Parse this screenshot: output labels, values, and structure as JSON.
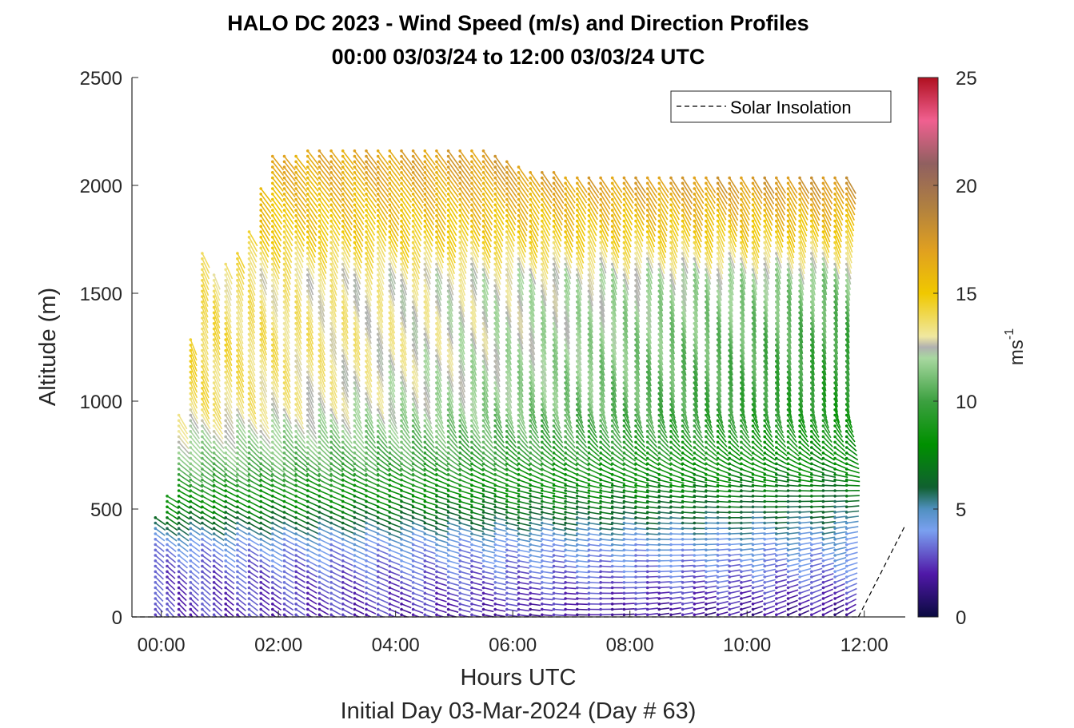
{
  "chart_data": {
    "type": "wind_profile_barbs",
    "title_line1": "HALO DC 2023 - Wind Speed (m/s) and Direction Profiles",
    "title_line2": "00:00 03/03/24 to 12:00 03/03/24  UTC",
    "xlabel": "Hours UTC",
    "xlabel2": "Initial Day 03-Mar-2024 (Day # 63)",
    "ylabel": "Altitude (m)",
    "x_ticks": [
      "00:00",
      "02:00",
      "04:00",
      "06:00",
      "08:00",
      "10:00",
      "12:00"
    ],
    "x_tick_hours": [
      0,
      2,
      4,
      6,
      8,
      10,
      12
    ],
    "xlim_hours": [
      -0.5,
      12.7
    ],
    "y_ticks": [
      "0",
      "500",
      "1000",
      "1500",
      "2000",
      "2500"
    ],
    "y_tick_values": [
      0,
      500,
      1000,
      1500,
      2000,
      2500
    ],
    "ylim": [
      0,
      2500
    ],
    "legend": {
      "entry": "Solar Insolation",
      "placement": "top-right",
      "style": "dashed-black"
    },
    "colorbar": {
      "label": "ms",
      "label_exponent": "-1",
      "ticks": [
        "0",
        "5",
        "10",
        "15",
        "20",
        "25"
      ],
      "tick_values": [
        0,
        5,
        10,
        15,
        20,
        25
      ],
      "range": [
        0,
        25
      ],
      "stops": [
        {
          "v": 0,
          "c": "#0a0a40"
        },
        {
          "v": 2,
          "c": "#5018a8"
        },
        {
          "v": 4,
          "c": "#7aa0f0"
        },
        {
          "v": 5,
          "c": "#5090c0"
        },
        {
          "v": 6,
          "c": "#106030"
        },
        {
          "v": 8,
          "c": "#009000"
        },
        {
          "v": 10,
          "c": "#3ca040"
        },
        {
          "v": 12,
          "c": "#a8d8a0"
        },
        {
          "v": 12.5,
          "c": "#b0b0b0"
        },
        {
          "v": 13,
          "c": "#f0e8a0"
        },
        {
          "v": 15,
          "c": "#f0c800"
        },
        {
          "v": 17,
          "c": "#e0a020"
        },
        {
          "v": 19,
          "c": "#b08040"
        },
        {
          "v": 21,
          "c": "#906060"
        },
        {
          "v": 23,
          "c": "#f06090"
        },
        {
          "v": 25,
          "c": "#b01020"
        }
      ]
    },
    "profile_hours": [
      -0.1,
      0.1,
      0.3,
      0.5,
      0.7,
      0.9,
      1.1,
      1.3,
      1.5,
      1.7,
      1.9,
      2.1,
      2.3,
      2.5,
      2.7,
      2.9,
      3.1,
      3.3,
      3.5,
      3.7,
      3.9,
      4.1,
      4.3,
      4.5,
      4.7,
      4.9,
      5.1,
      5.3,
      5.5,
      5.7,
      5.9,
      6.1,
      6.3,
      6.5,
      6.7,
      6.9,
      7.1,
      7.3,
      7.5,
      7.7,
      7.9,
      8.1,
      8.3,
      8.5,
      8.7,
      8.9,
      9.1,
      9.3,
      9.5,
      9.7,
      9.9,
      10.1,
      10.3,
      10.5,
      10.7,
      10.9,
      11.1,
      11.3,
      11.5,
      11.7
    ],
    "profile_top_altitude_m": [
      480,
      580,
      950,
      1300,
      1700,
      1600,
      1650,
      1700,
      1800,
      2000,
      2150,
      2150,
      2150,
      2180,
      2180,
      2180,
      2180,
      2180,
      2180,
      2180,
      2180,
      2180,
      2180,
      2180,
      2180,
      2180,
      2180,
      2180,
      2180,
      2150,
      2120,
      2100,
      2080,
      2060,
      2060,
      2040,
      2040,
      2040,
      2040,
      2040,
      2040,
      2040,
      2040,
      2040,
      2040,
      2040,
      2040,
      2040,
      2040,
      2040,
      2040,
      2040,
      2040,
      2040,
      2040,
      2040,
      2040,
      2040,
      2040,
      2040
    ],
    "profile_vertical_step_m": 25,
    "speed_by_altitude_ms": [
      {
        "alt": 0,
        "early": 2.5,
        "late": 1.5
      },
      {
        "alt": 200,
        "early": 2.8,
        "late": 3.5
      },
      {
        "alt": 350,
        "early": 4.0,
        "late": 4.5
      },
      {
        "alt": 500,
        "early": 7.5,
        "late": 6.0
      },
      {
        "alt": 700,
        "early": 11.0,
        "late": 7.5
      },
      {
        "alt": 1000,
        "early": 14.0,
        "late": 9.0
      },
      {
        "alt": 1300,
        "early": 14.5,
        "late": 10.0
      },
      {
        "alt": 1600,
        "early": 13.5,
        "late": 11.5
      },
      {
        "alt": 1800,
        "early": 15.0,
        "late": 15.0
      },
      {
        "alt": 2100,
        "early": 16.0,
        "late": 18.5
      }
    ],
    "direction_to_by_altitude_deg": [
      {
        "alt": 0,
        "early": 140,
        "late": 60
      },
      {
        "alt": 300,
        "early": 130,
        "late": 75
      },
      {
        "alt": 600,
        "early": 120,
        "late": 90
      },
      {
        "alt": 1000,
        "early": 155,
        "late": 170
      },
      {
        "alt": 1500,
        "early": 160,
        "late": 170
      },
      {
        "alt": 2000,
        "early": 140,
        "late": 150
      }
    ],
    "solar_insolation_points": [
      [
        11.9,
        0
      ],
      [
        12.7,
        425
      ]
    ]
  }
}
